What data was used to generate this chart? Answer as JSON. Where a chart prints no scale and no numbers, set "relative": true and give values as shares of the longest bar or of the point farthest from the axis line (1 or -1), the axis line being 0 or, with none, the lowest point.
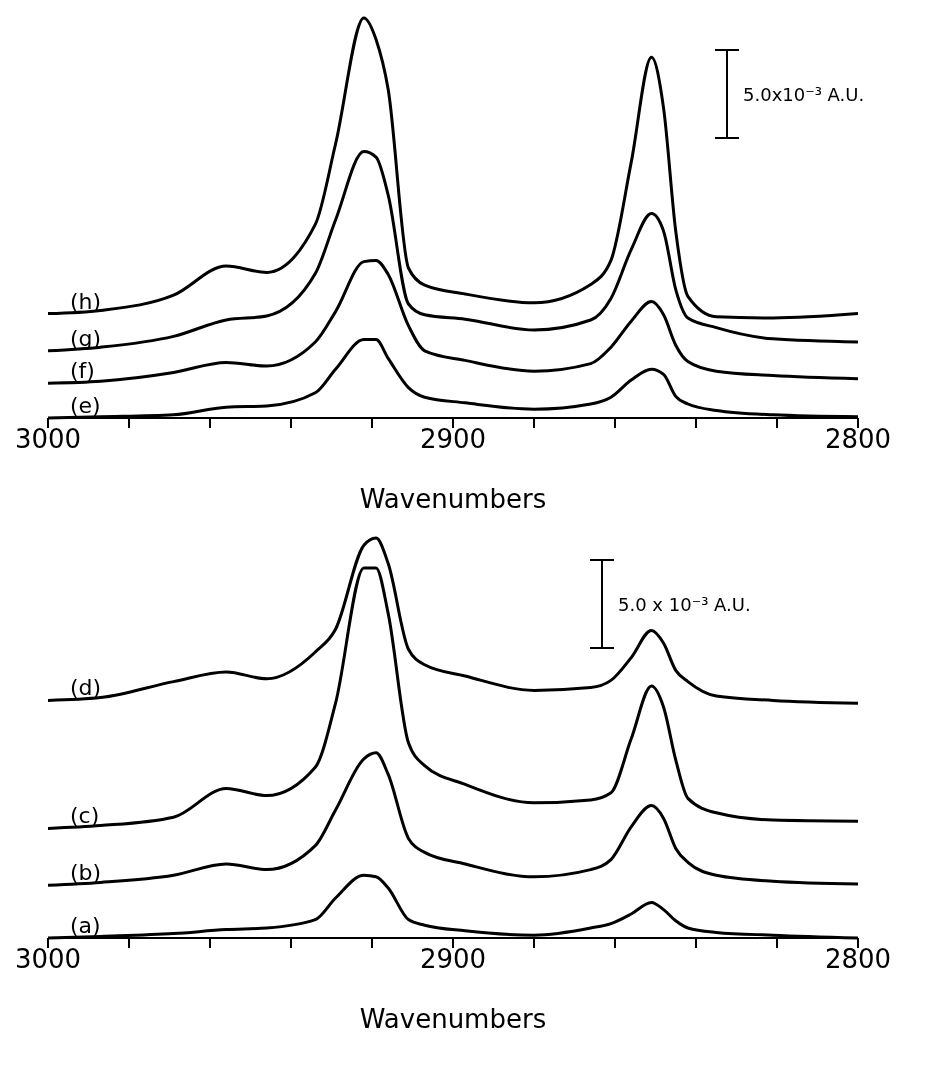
{
  "chart_data": [
    {
      "type": "line",
      "relative": true,
      "xlabel": "Wavenumbers",
      "annotations": [
        "5.0x10⁻³ A.U."
      ],
      "xlim": [
        3000,
        2800
      ],
      "xticks": [
        3000,
        {
          "value": 2980,
          "label": null
        },
        {
          "value": 2960,
          "label": null
        },
        {
          "value": 2940,
          "label": null
        },
        {
          "value": 2920,
          "label": null
        },
        2900,
        {
          "value": 2880,
          "label": null
        },
        {
          "value": 2860,
          "label": null
        },
        {
          "value": 2840,
          "label": null
        },
        {
          "value": 2820,
          "label": null
        },
        2800
      ],
      "grid": false,
      "legend": false,
      "marker": "none",
      "line_style": "solid",
      "x": [
        3000,
        2987,
        2969,
        2956,
        2946,
        2934,
        2929,
        2922,
        2919,
        2916,
        2911,
        2907,
        2897,
        2880,
        2866,
        2861,
        2856,
        2851,
        2848,
        2845,
        2842,
        2835,
        2821,
        2800
      ],
      "series": [
        {
          "name": "(e)",
          "color": "#000000",
          "values": [
            0,
            0.003,
            0.008,
            0.027,
            0.03,
            0.063,
            0.122,
            0.196,
            0.196,
            0.149,
            0.076,
            0.052,
            0.038,
            0.022,
            0.035,
            0.052,
            0.095,
            0.122,
            0.109,
            0.054,
            0.035,
            0.019,
            0.008,
            0.003
          ]
        },
        {
          "name": "(f)",
          "color": "#000000",
          "values": [
            0.087,
            0.092,
            0.114,
            0.139,
            0.13,
            0.19,
            0.266,
            0.391,
            0.394,
            0.359,
            0.231,
            0.168,
            0.144,
            0.117,
            0.136,
            0.177,
            0.242,
            0.291,
            0.258,
            0.182,
            0.141,
            0.117,
            0.106,
            0.098
          ]
        },
        {
          "name": "(g)",
          "color": "#000000",
          "values": [
            0.168,
            0.177,
            0.204,
            0.245,
            0.255,
            0.361,
            0.495,
            0.666,
            0.652,
            0.557,
            0.285,
            0.258,
            0.247,
            0.22,
            0.245,
            0.299,
            0.421,
            0.511,
            0.467,
            0.321,
            0.25,
            0.226,
            0.198,
            0.19
          ]
        },
        {
          "name": "(h)",
          "color": "#000000",
          "values": [
            0.261,
            0.269,
            0.307,
            0.38,
            0.364,
            0.484,
            0.685,
            1.0,
            0.946,
            0.821,
            0.375,
            0.332,
            0.31,
            0.288,
            0.334,
            0.394,
            0.639,
            0.902,
            0.774,
            0.467,
            0.304,
            0.253,
            0.25,
            0.261
          ]
        }
      ]
    },
    {
      "type": "line",
      "relative": true,
      "xlabel": "Wavenumbers",
      "annotations": [
        "5.0 x 10⁻³ A.U."
      ],
      "xlim": [
        3000,
        2800
      ],
      "xticks": [
        3000,
        {
          "value": 2980,
          "label": null
        },
        {
          "value": 2960,
          "label": null
        },
        {
          "value": 2940,
          "label": null
        },
        {
          "value": 2920,
          "label": null
        },
        2900,
        {
          "value": 2880,
          "label": null
        },
        {
          "value": 2860,
          "label": null
        },
        {
          "value": 2840,
          "label": null
        },
        {
          "value": 2820,
          "label": null
        },
        2800
      ],
      "grid": false,
      "legend": false,
      "marker": "none",
      "line_style": "solid",
      "x": [
        3000,
        2987,
        2969,
        2956,
        2946,
        2934,
        2929,
        2922,
        2919,
        2916,
        2911,
        2907,
        2897,
        2880,
        2866,
        2861,
        2856,
        2851,
        2848,
        2845,
        2842,
        2835,
        2821,
        2800
      ],
      "series": [
        {
          "name": "(a)",
          "color": "#000000",
          "values": [
            0,
            0.004,
            0.011,
            0.021,
            0.025,
            0.046,
            0.1,
            0.157,
            0.153,
            0.125,
            0.046,
            0.032,
            0.018,
            0.007,
            0.025,
            0.036,
            0.06,
            0.089,
            0.071,
            0.043,
            0.025,
            0.014,
            0.007,
            0
          ]
        },
        {
          "name": "(b)",
          "color": "#000000",
          "values": [
            0.132,
            0.139,
            0.157,
            0.185,
            0.171,
            0.231,
            0.32,
            0.448,
            0.463,
            0.409,
            0.249,
            0.214,
            0.185,
            0.153,
            0.171,
            0.196,
            0.278,
            0.331,
            0.299,
            0.224,
            0.189,
            0.157,
            0.142,
            0.135
          ]
        },
        {
          "name": "(c)",
          "color": "#000000",
          "values": [
            0.274,
            0.281,
            0.302,
            0.374,
            0.356,
            0.427,
            0.587,
            0.925,
            0.925,
            0.811,
            0.488,
            0.431,
            0.384,
            0.338,
            0.345,
            0.363,
            0.498,
            0.63,
            0.577,
            0.445,
            0.349,
            0.313,
            0.295,
            0.292
          ]
        },
        {
          "name": "(d)",
          "color": "#000000",
          "values": [
            0.594,
            0.601,
            0.641,
            0.665,
            0.648,
            0.715,
            0.772,
            0.982,
            1.0,
            0.936,
            0.722,
            0.683,
            0.655,
            0.619,
            0.626,
            0.644,
            0.701,
            0.769,
            0.737,
            0.669,
            0.641,
            0.605,
            0.594,
            0.587
          ]
        }
      ]
    }
  ]
}
